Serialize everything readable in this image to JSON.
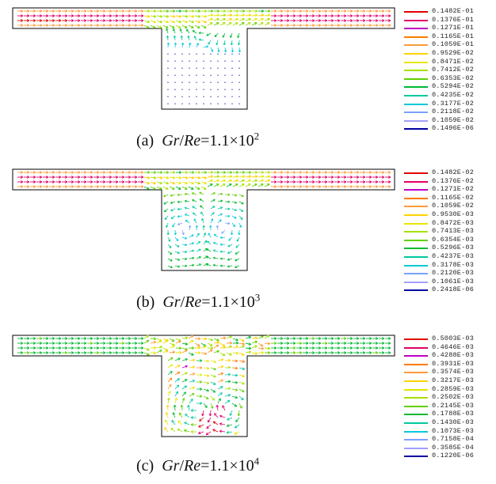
{
  "panels": [
    {
      "label": "(a)",
      "eq_suffix": "=1.1×10",
      "exponent": "2",
      "flow": "weak",
      "legend": [
        "0.1482E-01",
        "0.1376E-01",
        "0.1271E-01",
        "0.1165E-01",
        "0.1059E-01",
        "0.9529E-02",
        "0.8471E-02",
        "0.7412E-02",
        "0.6353E-02",
        "0.5294E-02",
        "0.4235E-02",
        "0.3177E-02",
        "0.2118E-02",
        "0.1059E-02",
        "0.1496E-06"
      ]
    },
    {
      "label": "(b)",
      "eq_suffix": "=1.1×10",
      "exponent": "3",
      "flow": "medium",
      "legend": [
        "0.1482E-02",
        "0.1376E-02",
        "0.1271E-02",
        "0.1165E-02",
        "0.1059E-02",
        "0.9530E-03",
        "0.8472E-03",
        "0.7413E-03",
        "0.6354E-03",
        "0.5296E-03",
        "0.4237E-03",
        "0.3178E-03",
        "0.2120E-03",
        "0.1061E-03",
        "0.2418E-06"
      ]
    },
    {
      "label": "(c)",
      "eq_suffix": "=1.1×10",
      "exponent": "4",
      "flow": "strong",
      "legend": [
        "0.5003E-03",
        "0.4646E-03",
        "0.4288E-03",
        "0.3931E-03",
        "0.3574E-03",
        "0.3217E-03",
        "0.2859E-03",
        "0.2502E-03",
        "0.2145E-03",
        "0.1788E-03",
        "0.1430E-03",
        "0.1073E-03",
        "0.7158E-04",
        "0.3585E-04",
        "0.1220E-06"
      ]
    }
  ],
  "caption_gr": "Gr",
  "caption_slash": "/",
  "caption_re": "Re",
  "legend_colors": [
    "#e00000",
    "#e0006a",
    "#c000c0",
    "#ff7a00",
    "#ff9a3a",
    "#ffd000",
    "#e6e600",
    "#a8e000",
    "#60d000",
    "#00b830",
    "#00c8a0",
    "#00c8d8",
    "#7aa0ff",
    "#a0a0ff",
    "#0000a0"
  ]
}
